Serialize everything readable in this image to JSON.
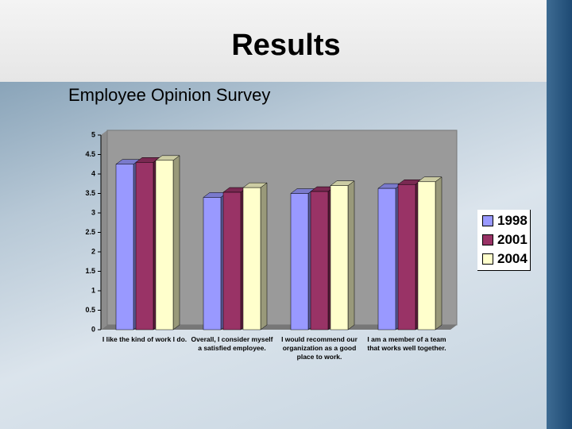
{
  "header": {
    "title": "Results",
    "subtitle": "Employee Opinion Survey"
  },
  "chart_data": {
    "type": "bar",
    "categories": [
      "I like the kind of work I do.",
      "Overall, I consider myself a satisfied employee.",
      "I would recommend our organization as a good place to work.",
      "I am a member of a team that works well together."
    ],
    "series": [
      {
        "name": "1998",
        "color": "#9999ff",
        "values": [
          4.25,
          3.4,
          3.5,
          3.63
        ]
      },
      {
        "name": "2001",
        "color": "#993366",
        "values": [
          4.3,
          3.53,
          3.55,
          3.73
        ]
      },
      {
        "name": "2004",
        "color": "#ffffcc",
        "values": [
          4.35,
          3.65,
          3.7,
          3.8
        ]
      }
    ],
    "ylim": [
      0,
      5
    ],
    "yticks": [
      0,
      0.5,
      1,
      1.5,
      2,
      2.5,
      3,
      3.5,
      4,
      4.5,
      5
    ],
    "grid": false,
    "legend": "right"
  }
}
